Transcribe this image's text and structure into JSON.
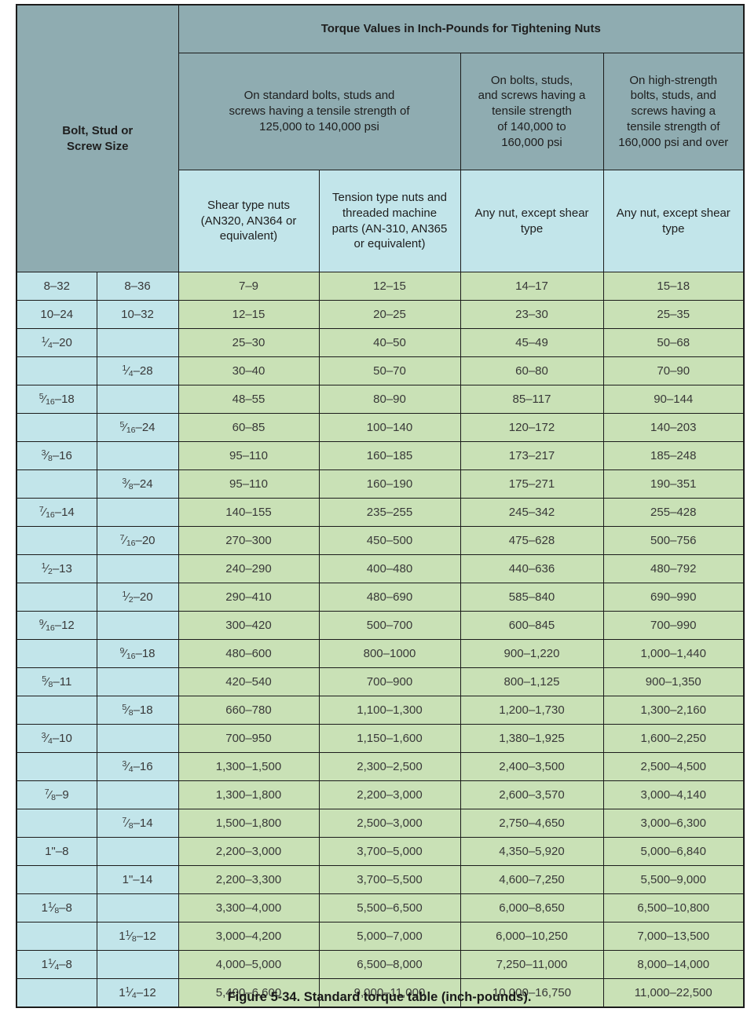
{
  "colors": {
    "header_teal": "#8FACB1",
    "light_cyan": "#C2E5EA",
    "light_green": "#C9E1B6",
    "border": "#1B1B1B"
  },
  "table": {
    "corner_header": "Bolt, Stud or\nScrew Size",
    "title": "Torque Values in Inch-Pounds for Tightening Nuts",
    "group_headers": [
      "On standard bolts, studs and\nscrews having a tensile strength of\n125,000 to 140,000 psi",
      "On bolts, studs,\nand screws having a\ntensile strength\nof 140,000 to\n160,000 psi",
      "On high-strength\nbolts, studs, and\nscrews having a\ntensile strength of\n160,000 psi and over"
    ],
    "sub_headers": [
      "Shear type nuts\n(AN320, AN364 or\nequivalent)",
      "Tension type nuts and\nthreaded machine\nparts (AN-310, AN365\nor equivalent)",
      "Any nut, except shear\ntype",
      "Any nut, except shear\ntype"
    ],
    "rows": [
      {
        "coarse": "8–32",
        "fine": "8–36",
        "values": [
          "7–9",
          "12–15",
          "14–17",
          "15–18"
        ]
      },
      {
        "coarse": "10–24",
        "fine": "10–32",
        "values": [
          "12–15",
          "20–25",
          "23–30",
          "25–35"
        ]
      },
      {
        "coarse": "1/4–20",
        "fine": "",
        "values": [
          "25–30",
          "40–50",
          "45–49",
          "50–68"
        ]
      },
      {
        "coarse": "",
        "fine": "1/4–28",
        "values": [
          "30–40",
          "50–70",
          "60–80",
          "70–90"
        ]
      },
      {
        "coarse": "5/16–18",
        "fine": "",
        "values": [
          "48–55",
          "80–90",
          "85–117",
          "90–144"
        ]
      },
      {
        "coarse": "",
        "fine": "5/16–24",
        "values": [
          "60–85",
          "100–140",
          "120–172",
          "140–203"
        ]
      },
      {
        "coarse": "3/8–16",
        "fine": "",
        "values": [
          "95–110",
          "160–185",
          "173–217",
          "185–248"
        ]
      },
      {
        "coarse": "",
        "fine": "3/8–24",
        "values": [
          "95–110",
          "160–190",
          "175–271",
          "190–351"
        ]
      },
      {
        "coarse": "7/16–14",
        "fine": "",
        "values": [
          "140–155",
          "235–255",
          "245–342",
          "255–428"
        ]
      },
      {
        "coarse": "",
        "fine": "7/16–20",
        "values": [
          "270–300",
          "450–500",
          "475–628",
          "500–756"
        ]
      },
      {
        "coarse": "1/2–13",
        "fine": "",
        "values": [
          "240–290",
          "400–480",
          "440–636",
          "480–792"
        ]
      },
      {
        "coarse": "",
        "fine": "1/2–20",
        "values": [
          "290–410",
          "480–690",
          "585–840",
          "690–990"
        ]
      },
      {
        "coarse": "9/16–12",
        "fine": "",
        "values": [
          "300–420",
          "500–700",
          "600–845",
          "700–990"
        ]
      },
      {
        "coarse": "",
        "fine": "9/16–18",
        "values": [
          "480–600",
          "800–1000",
          "900–1,220",
          "1,000–1,440"
        ]
      },
      {
        "coarse": "5/8–11",
        "fine": "",
        "values": [
          "420–540",
          "700–900",
          "800–1,125",
          "900–1,350"
        ]
      },
      {
        "coarse": "",
        "fine": "5/8–18",
        "values": [
          "660–780",
          "1,100–1,300",
          "1,200–1,730",
          "1,300–2,160"
        ]
      },
      {
        "coarse": "3/4–10",
        "fine": "",
        "values": [
          "700–950",
          "1,150–1,600",
          "1,380–1,925",
          "1,600–2,250"
        ]
      },
      {
        "coarse": "",
        "fine": "3/4–16",
        "values": [
          "1,300–1,500",
          "2,300–2,500",
          "2,400–3,500",
          "2,500–4,500"
        ]
      },
      {
        "coarse": "7/8–9",
        "fine": "",
        "values": [
          "1,300–1,800",
          "2,200–3,000",
          "2,600–3,570",
          "3,000–4,140"
        ]
      },
      {
        "coarse": "",
        "fine": "7/8–14",
        "values": [
          "1,500–1,800",
          "2,500–3,000",
          "2,750–4,650",
          "3,000–6,300"
        ]
      },
      {
        "coarse": "1\"–8",
        "fine": "",
        "values": [
          "2,200–3,000",
          "3,700–5,000",
          "4,350–5,920",
          "5,000–6,840"
        ]
      },
      {
        "coarse": "",
        "fine": "1\"–14",
        "values": [
          "2,200–3,300",
          "3,700–5,500",
          "4,600–7,250",
          "5,500–9,000"
        ]
      },
      {
        "coarse": "1 1/8–8",
        "fine": "",
        "values": [
          "3,300–4,000",
          "5,500–6,500",
          "6,000–8,650",
          "6,500–10,800"
        ]
      },
      {
        "coarse": "",
        "fine": "1 1/8–12",
        "values": [
          "3,000–4,200",
          "5,000–7,000",
          "6,000–10,250",
          "7,000–13,500"
        ]
      },
      {
        "coarse": "1 1/4–8",
        "fine": "",
        "values": [
          "4,000–5,000",
          "6,500–8,000",
          "7,250–11,000",
          "8,000–14,000"
        ]
      },
      {
        "coarse": "",
        "fine": "1 1/4–12",
        "values": [
          "5,400–6,600",
          "9,000–11,000",
          "10,000–16,750",
          "11,000–22,500"
        ]
      }
    ]
  },
  "caption": "Figure 5-34. Standard torque table (inch-pounds)."
}
